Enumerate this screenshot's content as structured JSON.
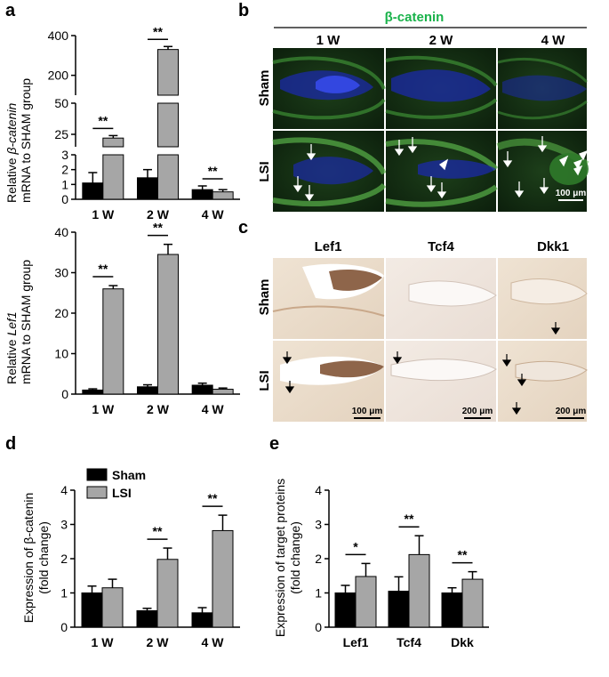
{
  "panels": {
    "a": "a",
    "b": "b",
    "c": "c",
    "d": "d",
    "e": "e"
  },
  "colors": {
    "sham": "#000000",
    "lsi": "#a6a6a6",
    "green_title": "#19b24a"
  },
  "panel_a_top": {
    "ylabel_line1_pre": "Relative ",
    "ylabel_line1_italic": "β-catenin",
    "ylabel_line2": "mRNA to SHAM group",
    "categories": [
      "1 W",
      "2 W",
      "4 W"
    ],
    "segments": [
      {
        "ticks": [
          "400",
          "200"
        ]
      },
      {
        "ticks": [
          "50",
          "25"
        ]
      },
      {
        "ticks": [
          "3",
          "2",
          "1",
          "0"
        ]
      }
    ]
  },
  "panel_a_bottom": {
    "ylabel_line1_pre": "Relative ",
    "ylabel_line1_italic": "Lef1",
    "ylabel_line2": "mRNA to SHAM group",
    "categories": [
      "1 W",
      "2 W",
      "4 W"
    ],
    "yticks": [
      "40",
      "30",
      "20",
      "10",
      "0"
    ]
  },
  "panel_b": {
    "title": "β-catenin",
    "columns": [
      "1 W",
      "2 W",
      "4 W"
    ],
    "rows": [
      "Sham",
      "LSI"
    ],
    "scale_bar": "100 μm"
  },
  "panel_c": {
    "columns": [
      "Lef1",
      "Tcf4",
      "Dkk1"
    ],
    "rows": [
      "Sham",
      "LSI"
    ],
    "scale_bars": [
      "100 μm",
      "200 μm",
      "200 μm"
    ]
  },
  "panel_d": {
    "ylabel_line1": "Expression of β-catenin",
    "ylabel_line2": "(fold change)",
    "yticks": [
      "4",
      "3",
      "2",
      "1",
      "0"
    ],
    "legend": [
      "Sham",
      "LSI"
    ]
  },
  "panel_e": {
    "ylabel_line1": "Expression of target proteins",
    "ylabel_line2": "(fold change)",
    "yticks": [
      "4",
      "3",
      "2",
      "1",
      "0"
    ]
  },
  "chart_data": [
    {
      "type": "bar",
      "panel": "a-top",
      "categories": [
        "1 W",
        "2 W",
        "4 W"
      ],
      "series": [
        {
          "name": "Sham",
          "values": [
            1.1,
            1.45,
            0.65
          ],
          "errors": [
            0.7,
            0.55,
            0.25
          ]
        },
        {
          "name": "LSI",
          "values": [
            22,
            330,
            0.5
          ],
          "errors": [
            2,
            15,
            0.15
          ]
        }
      ],
      "significance": [
        "**",
        "**",
        "**"
      ],
      "y_axis": "broken: 0-3, 15-50, 100-400"
    },
    {
      "type": "bar",
      "panel": "a-bottom",
      "categories": [
        "1 W",
        "2 W",
        "4 W"
      ],
      "series": [
        {
          "name": "Sham",
          "values": [
            1.0,
            1.8,
            2.2
          ],
          "errors": [
            0.3,
            0.5,
            0.5
          ]
        },
        {
          "name": "LSI",
          "values": [
            26,
            34.5,
            1.2
          ],
          "errors": [
            0.8,
            2.5,
            0.3
          ]
        }
      ],
      "significance": [
        "**",
        "**",
        ""
      ],
      "ylim": [
        0,
        40
      ]
    },
    {
      "type": "bar",
      "panel": "d",
      "categories": [
        "1 W",
        "2 W",
        "4 W"
      ],
      "series": [
        {
          "name": "Sham",
          "values": [
            1.0,
            0.48,
            0.42
          ],
          "errors": [
            0.2,
            0.07,
            0.15
          ]
        },
        {
          "name": "LSI",
          "values": [
            1.15,
            1.98,
            2.82
          ],
          "errors": [
            0.25,
            0.33,
            0.45
          ]
        }
      ],
      "significance": [
        "",
        "**",
        "**"
      ],
      "ylim": [
        0,
        4
      ]
    },
    {
      "type": "bar",
      "panel": "e",
      "categories": [
        "Lef1",
        "Tcf4",
        "Dkk"
      ],
      "series": [
        {
          "name": "Sham",
          "values": [
            1.0,
            1.05,
            1.0
          ],
          "errors": [
            0.22,
            0.42,
            0.15
          ]
        },
        {
          "name": "LSI",
          "values": [
            1.48,
            2.12,
            1.4
          ],
          "errors": [
            0.38,
            0.55,
            0.22
          ]
        }
      ],
      "significance": [
        "*",
        "**",
        "**"
      ],
      "ylim": [
        0,
        4
      ]
    }
  ]
}
